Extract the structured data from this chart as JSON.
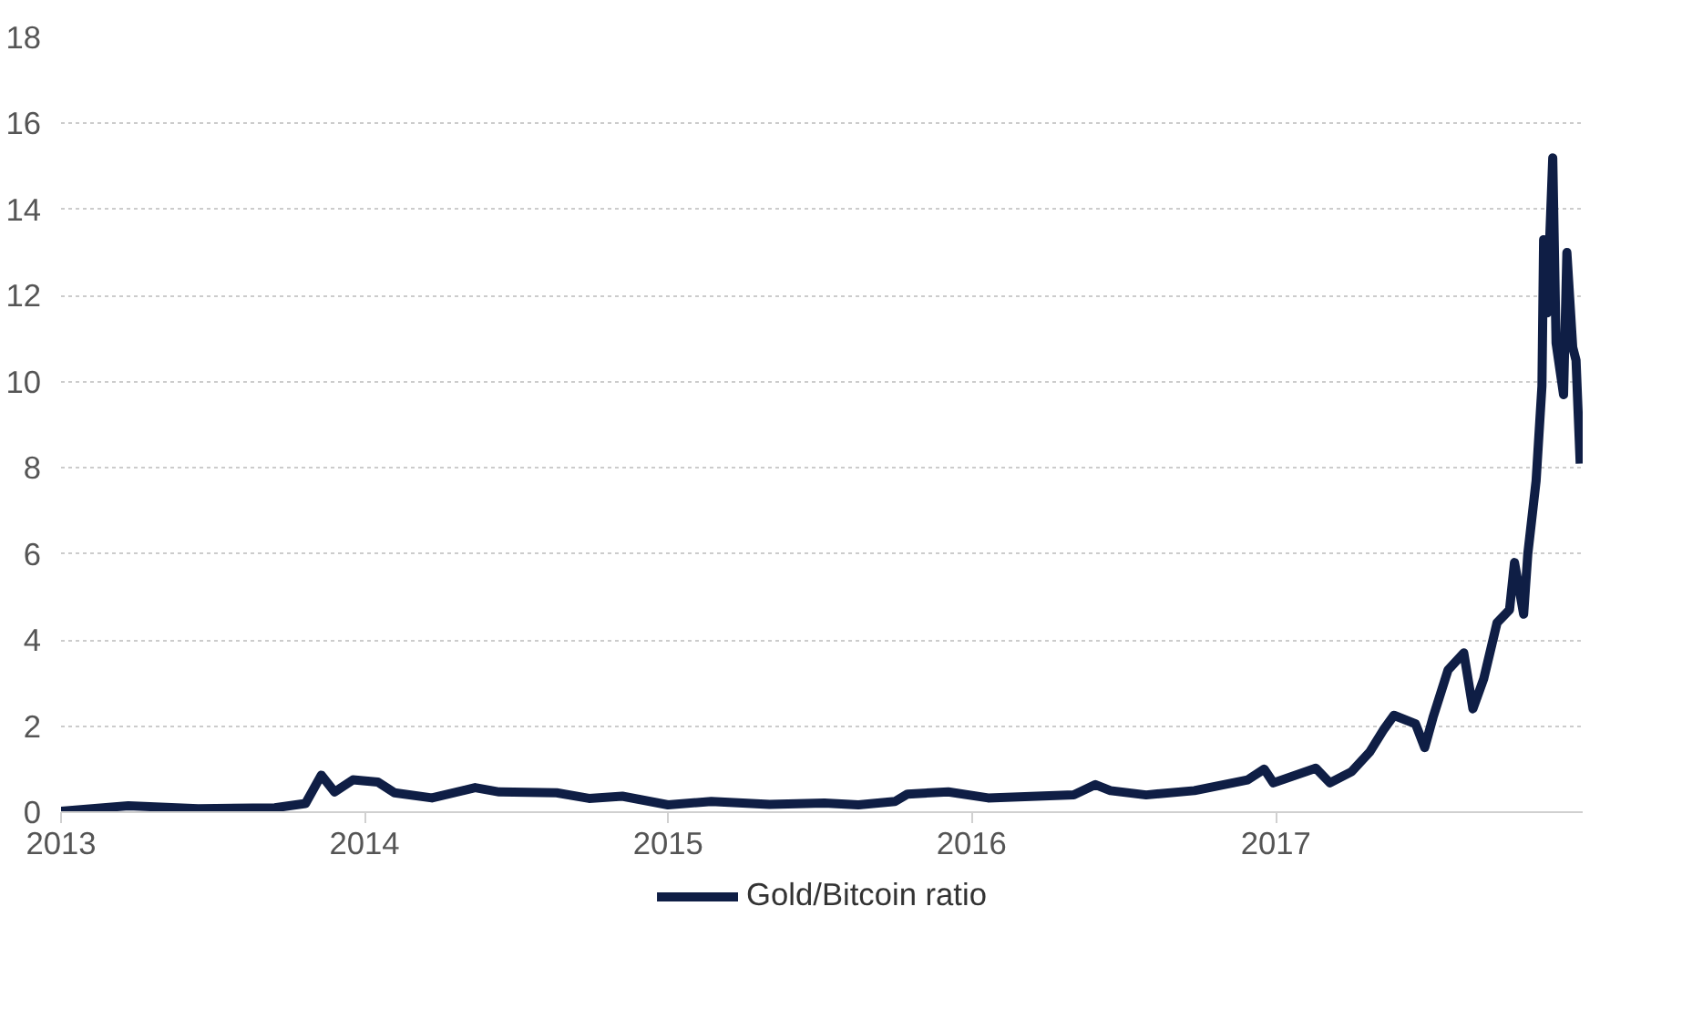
{
  "chart_data": {
    "type": "line",
    "x": [
      "2013-01-01",
      "2013-03-23",
      "2013-06-15",
      "2013-09-15",
      "2013-10-22",
      "2013-11-10",
      "2013-11-26",
      "2013-12-18",
      "2014-01-17",
      "2014-02-06",
      "2014-03-23",
      "2014-05-14",
      "2014-06-12",
      "2014-08-20",
      "2014-09-28",
      "2014-11-07",
      "2015-01-01",
      "2015-02-22",
      "2015-05-03",
      "2015-07-08",
      "2015-08-18",
      "2015-10-01",
      "2015-10-16",
      "2015-12-04",
      "2016-01-21",
      "2016-05-03",
      "2016-05-29",
      "2016-06-16",
      "2016-07-29",
      "2016-09-25",
      "2016-11-28",
      "2016-12-18",
      "2016-12-29",
      "2017-02-18",
      "2017-03-07",
      "2017-04-02",
      "2017-04-24",
      "2017-05-10",
      "2017-05-23",
      "2017-06-18",
      "2017-06-29",
      "2017-07-09",
      "2017-07-27",
      "2017-08-15",
      "2017-08-26",
      "2017-09-08",
      "2017-09-24",
      "2017-10-09",
      "2017-10-15",
      "2017-10-26",
      "2017-10-31",
      "2017-11-10",
      "2017-11-17",
      "2017-11-19",
      "2017-11-23",
      "2017-11-30",
      "2017-12-04",
      "2017-12-13",
      "2017-12-17",
      "2017-12-24",
      "2017-12-28",
      "2018-01-02"
    ],
    "series": [
      {
        "name": "Gold/Bitcoin ratio",
        "color": "#0f1e45",
        "values": [
          0.02,
          0.15,
          0.08,
          0.1,
          0.2,
          0.86,
          0.47,
          0.75,
          0.7,
          0.45,
          0.33,
          0.57,
          0.47,
          0.45,
          0.32,
          0.37,
          0.17,
          0.25,
          0.18,
          0.21,
          0.17,
          0.25,
          0.42,
          0.47,
          0.33,
          0.4,
          0.64,
          0.5,
          0.4,
          0.5,
          0.75,
          1.0,
          0.68,
          1.02,
          0.68,
          0.94,
          1.4,
          1.9,
          2.25,
          2.05,
          1.5,
          2.2,
          3.3,
          3.7,
          2.4,
          3.1,
          4.4,
          4.7,
          5.8,
          4.6,
          6.0,
          7.7,
          9.9,
          13.3,
          11.6,
          15.2,
          10.9,
          9.7,
          13.0,
          10.8,
          10.5,
          8.1
        ]
      }
    ],
    "xlim": [
      "2013-01-01",
      "2018-01-05"
    ],
    "xticks": [
      {
        "value": "2013-01-01",
        "label": "2013"
      },
      {
        "value": "2014-01-01",
        "label": "2014"
      },
      {
        "value": "2015-01-01",
        "label": "2015"
      },
      {
        "value": "2016-01-01",
        "label": "2016"
      },
      {
        "value": "2017-01-01",
        "label": "2017"
      }
    ],
    "ylim": [
      0,
      18
    ],
    "yticks": [
      0,
      2,
      4,
      6,
      8,
      10,
      12,
      14,
      16,
      18
    ],
    "grid": "y",
    "legend": "bottom",
    "line_style": "solid",
    "marker": "none"
  }
}
